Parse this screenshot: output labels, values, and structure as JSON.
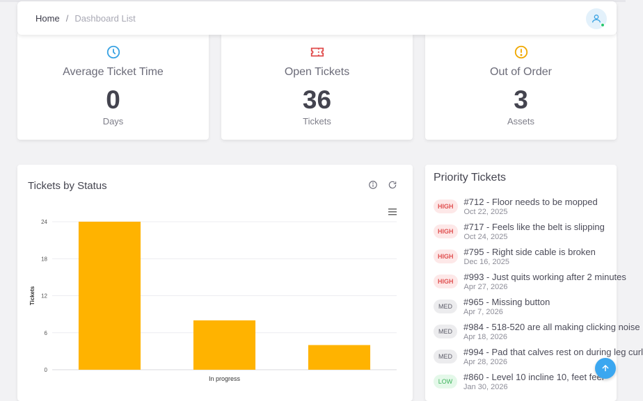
{
  "breadcrumb": {
    "home": "Home",
    "separator": "/",
    "current": "Dashboard List"
  },
  "stats": [
    {
      "label": "Average Ticket Time",
      "value": "0",
      "unit": "Days",
      "icon": "clock-icon",
      "color": "#3aa3e3"
    },
    {
      "label": "Open Tickets",
      "value": "36",
      "unit": "Tickets",
      "icon": "ticket-icon",
      "color": "#e04b4b"
    },
    {
      "label": "Out of Order",
      "value": "3",
      "unit": "Assets",
      "icon": "alert-circle-icon",
      "color": "#f0a800"
    }
  ],
  "chart_card": {
    "title": "Tickets by Status"
  },
  "chart_data": {
    "type": "bar",
    "categories": [
      "",
      "In progress",
      ""
    ],
    "values": [
      24,
      8,
      4
    ],
    "title": "",
    "xlabel": "",
    "ylabel": "Tickets",
    "ylim": [
      0,
      24
    ],
    "yticks": [
      "0",
      "6",
      "12",
      "18",
      "24"
    ],
    "grid": true,
    "color": "#ffb300"
  },
  "priority": {
    "title": "Priority Tickets",
    "items": [
      {
        "level": "HIGH",
        "title": "#712 - Floor needs to be mopped",
        "date": "Oct 22, 2025"
      },
      {
        "level": "HIGH",
        "title": "#717 - Feels like the belt is slipping",
        "date": "Oct 24, 2025"
      },
      {
        "level": "HIGH",
        "title": "#795 - Right side cable is broken",
        "date": "Dec 16, 2025"
      },
      {
        "level": "HIGH",
        "title": "#993 - Just quits working after 2 minutes",
        "date": "Apr 27, 2026"
      },
      {
        "level": "MED",
        "title": "#965 - Missing button",
        "date": "Apr 7, 2026"
      },
      {
        "level": "MED",
        "title": "#984 - 518-520 are all making clicking noise",
        "date": "Apr 18, 2026"
      },
      {
        "level": "MED",
        "title": "#994 - Pad that calves rest on during leg curl",
        "date": "Apr 28, 2026"
      },
      {
        "level": "LOW",
        "title": "#860 - Level 10 incline 10, feet feel",
        "date": "Jan 30, 2026"
      }
    ]
  }
}
